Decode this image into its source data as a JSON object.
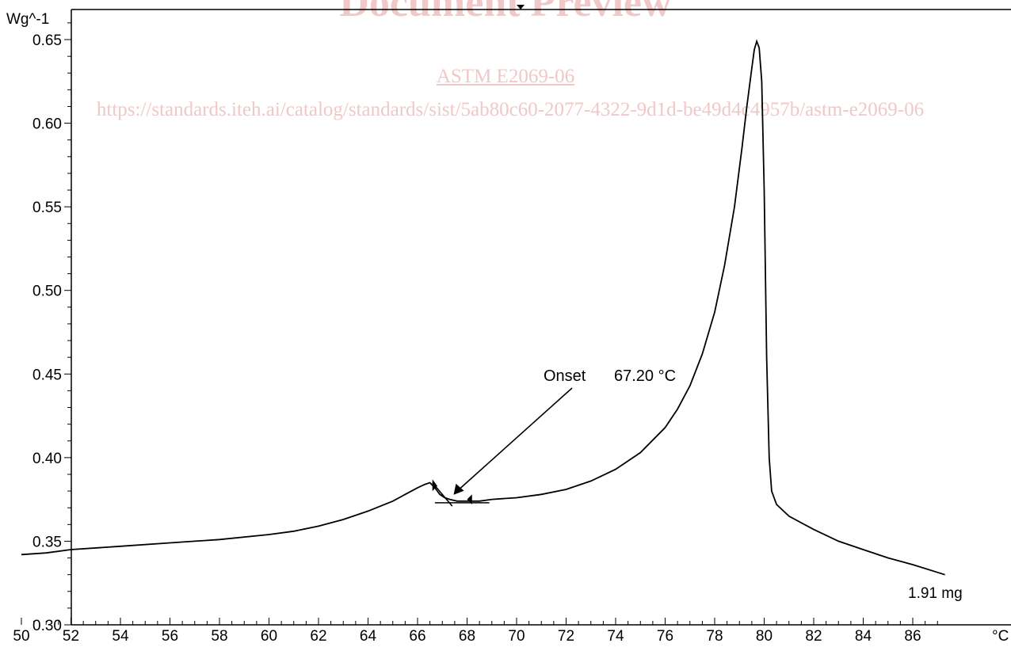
{
  "watermark": {
    "title": "Document Preview",
    "link": "ASTM E2069-06",
    "url": "https://standards.iteh.ai/catalog/standards/sist/5ab80c60-2077-4322-9d1d-be49d4c4957b/astm-e2069-06",
    "color": "#f0c8c8"
  },
  "chart_data": {
    "type": "line",
    "ylabel": "Wg^-1",
    "xlabel": "°C",
    "xlim": [
      50,
      87.3
    ],
    "ylim": [
      0.3,
      0.668
    ],
    "xticks": [
      50,
      52,
      54,
      56,
      58,
      60,
      62,
      64,
      66,
      68,
      70,
      72,
      74,
      76,
      78,
      80,
      82,
      84,
      86
    ],
    "yticks": [
      0.3,
      0.35,
      0.4,
      0.45,
      0.5,
      0.55,
      0.6,
      0.65
    ],
    "ytick_labels": [
      "0.30",
      "0.35",
      "0.40",
      "0.45",
      "0.50",
      "0.55",
      "0.60",
      "0.65"
    ],
    "line_color": "#000000",
    "series": [
      {
        "x": [
          50.0,
          51.0,
          52.0,
          54.0,
          56.0,
          58.0,
          60.0,
          61.0,
          62.0,
          63.0,
          64.0,
          65.0,
          65.5,
          66.0,
          66.3,
          66.5,
          66.7,
          66.9,
          67.1,
          67.3,
          67.6,
          68.0,
          68.5,
          69.0,
          70.0,
          71.0,
          72.0,
          73.0,
          74.0,
          75.0,
          76.0,
          76.5,
          77.0,
          77.5,
          78.0,
          78.4,
          78.8,
          79.1,
          79.3,
          79.5,
          79.6,
          79.7,
          79.8,
          79.9,
          80.0,
          80.1,
          80.2,
          80.3,
          80.5,
          81.0,
          82.0,
          83.0,
          84.0,
          85.0,
          86.0,
          87.3
        ],
        "y": [
          0.342,
          0.343,
          0.345,
          0.347,
          0.349,
          0.351,
          0.354,
          0.356,
          0.359,
          0.363,
          0.368,
          0.374,
          0.378,
          0.382,
          0.384,
          0.385,
          0.382,
          0.378,
          0.376,
          0.375,
          0.374,
          0.374,
          0.374,
          0.375,
          0.376,
          0.378,
          0.381,
          0.386,
          0.393,
          0.403,
          0.418,
          0.429,
          0.443,
          0.462,
          0.487,
          0.515,
          0.55,
          0.585,
          0.61,
          0.633,
          0.644,
          0.649,
          0.645,
          0.625,
          0.56,
          0.46,
          0.4,
          0.38,
          0.372,
          0.365,
          0.357,
          0.35,
          0.345,
          0.34,
          0.336,
          0.33
        ]
      }
    ],
    "annotations": {
      "onset_label": "Onset",
      "onset_value": "67.20 °C",
      "onset_x": 67.2,
      "onset_y": 0.374,
      "tangent_pre": {
        "x": [
          66.6,
          67.4
        ],
        "y": [
          0.385,
          0.371
        ]
      },
      "tangent_base": {
        "x": [
          66.7,
          68.9
        ],
        "y": [
          0.373,
          0.373
        ]
      },
      "sample_mass": "1.91 mg"
    }
  }
}
